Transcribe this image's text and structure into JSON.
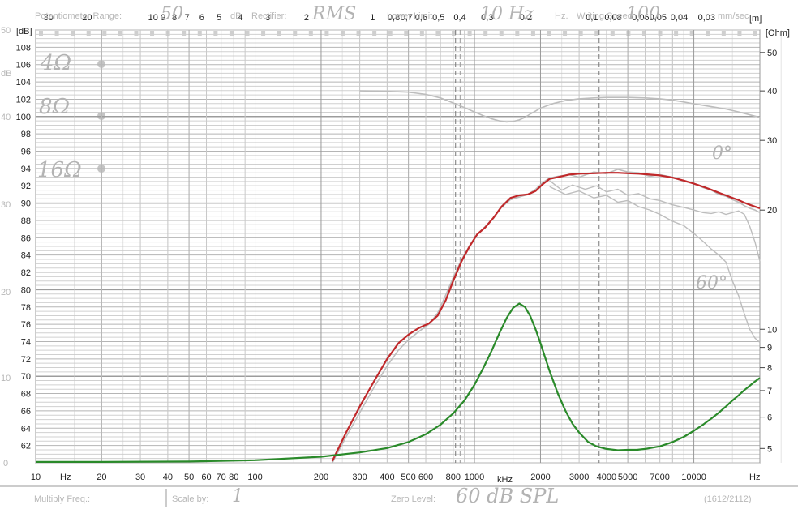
{
  "chart_data": {
    "type": "line",
    "x_unit_left": "Hz",
    "x_unit_right": "Hz",
    "x_unit_mid": "kHz",
    "xscale": "log",
    "xlim": [
      10,
      20000
    ],
    "ylim": [
      60,
      110
    ],
    "y_unit_left": "[dB]",
    "y_unit_right": "[Ohm]",
    "top_unit": "[m]",
    "x_ticks": [
      {
        "v": 10,
        "t": "10"
      },
      {
        "v": 20,
        "t": "20"
      },
      {
        "v": 30,
        "t": "30"
      },
      {
        "v": 40,
        "t": "40"
      },
      {
        "v": 50,
        "t": "50"
      },
      {
        "v": 60,
        "t": "60"
      },
      {
        "v": 70,
        "t": "70"
      },
      {
        "v": 80,
        "t": "80"
      },
      {
        "v": 100,
        "t": "100"
      },
      {
        "v": 200,
        "t": "200"
      },
      {
        "v": 300,
        "t": "300"
      },
      {
        "v": 400,
        "t": "400"
      },
      {
        "v": 500,
        "t": "500"
      },
      {
        "v": 600,
        "t": "600"
      },
      {
        "v": 800,
        "t": "800"
      },
      {
        "v": 1000,
        "t": "1000"
      },
      {
        "v": 2000,
        "t": "2000"
      },
      {
        "v": 3000,
        "t": "3000"
      },
      {
        "v": 4000,
        "t": "4000"
      },
      {
        "v": 5000,
        "t": "5000"
      },
      {
        "v": 7000,
        "t": "7000"
      },
      {
        "v": 10000,
        "t": "10000"
      }
    ],
    "y_ticks_left": [
      "62",
      "64",
      "66",
      "68",
      "70",
      "72",
      "74",
      "76",
      "78",
      "80",
      "82",
      "84",
      "86",
      "88",
      "90",
      "92",
      "94",
      "96",
      "98",
      "100",
      "102",
      "104",
      "106",
      "108"
    ],
    "y_ticks_right": [
      {
        "v": 5,
        "t": "5"
      },
      {
        "v": 6,
        "t": "6"
      },
      {
        "v": 7,
        "t": "7"
      },
      {
        "v": 8,
        "t": "8"
      },
      {
        "v": 9,
        "t": "9"
      },
      {
        "v": 10,
        "t": "10"
      },
      {
        "v": 20,
        "t": "20"
      },
      {
        "v": 30,
        "t": "30"
      },
      {
        "v": 40,
        "t": "40"
      },
      {
        "v": 50,
        "t": "50"
      }
    ],
    "ohm_range": [
      4.6,
      57
    ],
    "top_ticks": [
      {
        "v": 30,
        "t": "30"
      },
      {
        "v": 20,
        "t": "20"
      },
      {
        "v": 10,
        "t": "10"
      },
      {
        "v": 9,
        "t": "9"
      },
      {
        "v": 8,
        "t": "8"
      },
      {
        "v": 7,
        "t": "7"
      },
      {
        "v": 6,
        "t": "6"
      },
      {
        "v": 5,
        "t": "5"
      },
      {
        "v": 4,
        "t": "4"
      },
      {
        "v": 3,
        "t": "3"
      },
      {
        "v": 2,
        "t": "2"
      },
      {
        "v": 1,
        "t": "1"
      },
      {
        "v": 0.8,
        "t": "0,8"
      },
      {
        "v": 0.7,
        "t": "0,7"
      },
      {
        "v": 0.6,
        "t": "0,6"
      },
      {
        "v": 0.5,
        "t": "0,5"
      },
      {
        "v": 0.4,
        "t": "0,4"
      },
      {
        "v": 0.3,
        "t": "0,3"
      },
      {
        "v": 0.2,
        "t": "0,2"
      },
      {
        "v": 0.1,
        "t": "0,1"
      },
      {
        "v": 0.08,
        "t": "0,08"
      },
      {
        "v": 0.06,
        "t": "0,06"
      },
      {
        "v": 0.05,
        "t": "0,05"
      },
      {
        "v": 0.04,
        "t": "0,04"
      },
      {
        "v": 0.03,
        "t": "0,03"
      }
    ],
    "series": [
      {
        "color": "#c0282a",
        "x": [
          225,
          260,
          300,
          350,
          400,
          450,
          500,
          560,
          620,
          680,
          740,
          800,
          870,
          950,
          1030,
          1120,
          1220,
          1330,
          1460,
          1600,
          1750,
          1900,
          2050,
          2200,
          2400,
          2700,
          3000,
          3500,
          4000,
          4500,
          5000,
          5600,
          6300,
          7000,
          8000,
          9000,
          10000,
          11000,
          12000,
          13000,
          14000,
          15000,
          16000,
          17000,
          18000,
          19000,
          20000
        ],
        "y": [
          60.2,
          63.5,
          66.5,
          69.5,
          72.0,
          73.8,
          74.8,
          75.6,
          76.1,
          77.0,
          78.8,
          81.0,
          83.2,
          85.0,
          86.4,
          87.2,
          88.3,
          89.6,
          90.6,
          90.9,
          91.0,
          91.4,
          92.2,
          92.8,
          93.0,
          93.3,
          93.4,
          93.45,
          93.5,
          93.5,
          93.45,
          93.4,
          93.3,
          93.2,
          92.95,
          92.6,
          92.25,
          91.9,
          91.55,
          91.2,
          90.9,
          90.6,
          90.35,
          90.05,
          89.8,
          89.6,
          89.4
        ]
      },
      {
        "color": "#2a8a2a",
        "x": [
          10,
          20,
          50,
          100,
          200,
          300,
          400,
          500,
          600,
          700,
          800,
          900,
          1000,
          1100,
          1200,
          1300,
          1400,
          1500,
          1600,
          1700,
          1800,
          1900,
          2000,
          2200,
          2400,
          2600,
          2800,
          3000,
          3300,
          3600,
          4000,
          4500,
          5000,
          5500,
          6000,
          7000,
          8000,
          9000,
          10000,
          11000,
          12000,
          13000,
          14000,
          15000,
          16000,
          17000,
          18000,
          19000,
          20000
        ],
        "y": [
          60.1,
          60.1,
          60.15,
          60.3,
          60.7,
          61.2,
          61.7,
          62.4,
          63.3,
          64.4,
          65.7,
          67.2,
          69.0,
          71.0,
          73.0,
          75.0,
          76.7,
          77.9,
          78.4,
          78.0,
          76.9,
          75.4,
          73.8,
          70.6,
          68.0,
          66.0,
          64.5,
          63.5,
          62.4,
          61.9,
          61.6,
          61.45,
          61.5,
          61.5,
          61.6,
          61.9,
          62.4,
          63.0,
          63.7,
          64.4,
          65.1,
          65.8,
          66.5,
          67.2,
          67.8,
          68.4,
          68.9,
          69.4,
          69.8
        ]
      }
    ],
    "reference_curves": {
      "color": "#bdbdbd",
      "impedance_ohm": {
        "x": [
          300,
          400,
          500,
          600,
          700,
          800,
          900,
          1000,
          1100,
          1200,
          1300,
          1400,
          1500,
          1600,
          1700,
          1800,
          1900,
          2000,
          2300,
          2600,
          3000,
          3500,
          4000,
          5000,
          6000,
          7000,
          8000,
          9000,
          10000,
          12000,
          14000,
          16000,
          18000,
          20000
        ],
        "y": [
          40,
          39.9,
          39.7,
          39.2,
          38.4,
          37.3,
          36.3,
          35.4,
          34.6,
          34.0,
          33.6,
          33.4,
          33.5,
          33.8,
          34.3,
          35.0,
          35.6,
          36.2,
          37.2,
          37.8,
          38.2,
          38.4,
          38.5,
          38.5,
          38.4,
          38.2,
          37.9,
          37.5,
          37.1,
          36.5,
          36.0,
          35.4,
          34.8,
          34.3
        ]
      },
      "spl_0deg": {
        "x": [
          225,
          260,
          300,
          350,
          400,
          450,
          500,
          560,
          620,
          680,
          740,
          800,
          870,
          950,
          1030,
          1120,
          1220,
          1330,
          1460,
          1600,
          1750,
          1900,
          2050,
          2200,
          2400,
          2700,
          3000,
          3500,
          4000,
          4500,
          5000,
          5600,
          6300,
          7000,
          8000,
          9000,
          10000,
          11000,
          12000,
          13000,
          14000,
          15000,
          16000,
          17000,
          18000,
          19000,
          20000
        ],
        "y": [
          60.0,
          63.0,
          65.8,
          68.8,
          71.2,
          73.0,
          74.2,
          75.2,
          76.0,
          77.3,
          79.4,
          81.4,
          83.4,
          85.1,
          86.4,
          87.3,
          88.3,
          89.5,
          90.4,
          90.7,
          91.0,
          91.6,
          92.4,
          92.9,
          93.1,
          93.3,
          93.0,
          93.6,
          93.4,
          93.9,
          93.6,
          93.5,
          93.1,
          93.3,
          93.0,
          92.5,
          92.3,
          91.8,
          91.5,
          91.0,
          90.8,
          90.4,
          90.1,
          89.7,
          89.4,
          89.2,
          88.9
        ]
      },
      "spl_30deg": {
        "x": [
          2200,
          2500,
          2800,
          3200,
          3600,
          4000,
          4500,
          5000,
          5600,
          6300,
          7000,
          8000,
          9000,
          10000,
          11000,
          12000,
          13000,
          14000,
          15000,
          16000,
          17000,
          18000,
          19000,
          20000
        ],
        "y": [
          92.6,
          91.5,
          92.1,
          91.6,
          92.0,
          91.3,
          91.6,
          90.9,
          91.1,
          90.5,
          90.3,
          89.8,
          89.5,
          89.2,
          88.9,
          88.8,
          89.0,
          88.7,
          88.9,
          89.1,
          88.7,
          87.3,
          85.5,
          83.3
        ]
      },
      "spl_60deg": {
        "x": [
          2200,
          2600,
          3000,
          3500,
          4000,
          4500,
          5000,
          5600,
          6300,
          7000,
          8000,
          9000,
          10000,
          11000,
          12000,
          13000,
          14000,
          15000,
          16000,
          17000,
          18000,
          19000,
          20000
        ],
        "y": [
          91.9,
          91.0,
          91.4,
          90.6,
          90.9,
          90.1,
          90.3,
          89.6,
          89.2,
          88.7,
          87.9,
          87.4,
          86.5,
          85.6,
          84.7,
          84.0,
          83.2,
          81.0,
          79.3,
          77.2,
          75.4,
          74.4,
          73.9
        ]
      },
      "labels": [
        "0°",
        "60°"
      ]
    },
    "status_text": {
      "potentiometer_range": "Potentiometer Range:",
      "db": "dB",
      "rectifier": "Rectifier:",
      "rms": "RMS",
      "lower_limit": "Lower Limit",
      "lower_limit_value": "10 Hz",
      "hz": "Hz.",
      "writing_speed": "Writing Speed",
      "writing_speed_value": "100",
      "mm_sec": "mm/sec",
      "potentiometer_value": "50",
      "multiply_freq": "Multiply Freq.:",
      "scale_by": "Scale by:",
      "scale_by_value": "1",
      "zero_level": "Zero Level:",
      "zero_level_value": "60 dB SPL",
      "counter": "(1612/2112)"
    },
    "handwritten_labels": [
      "4Ω",
      "8Ω",
      "16Ω"
    ],
    "scanned_left_labels": [
      "50",
      "dB",
      "40",
      "30",
      "20",
      "10",
      "0"
    ]
  }
}
